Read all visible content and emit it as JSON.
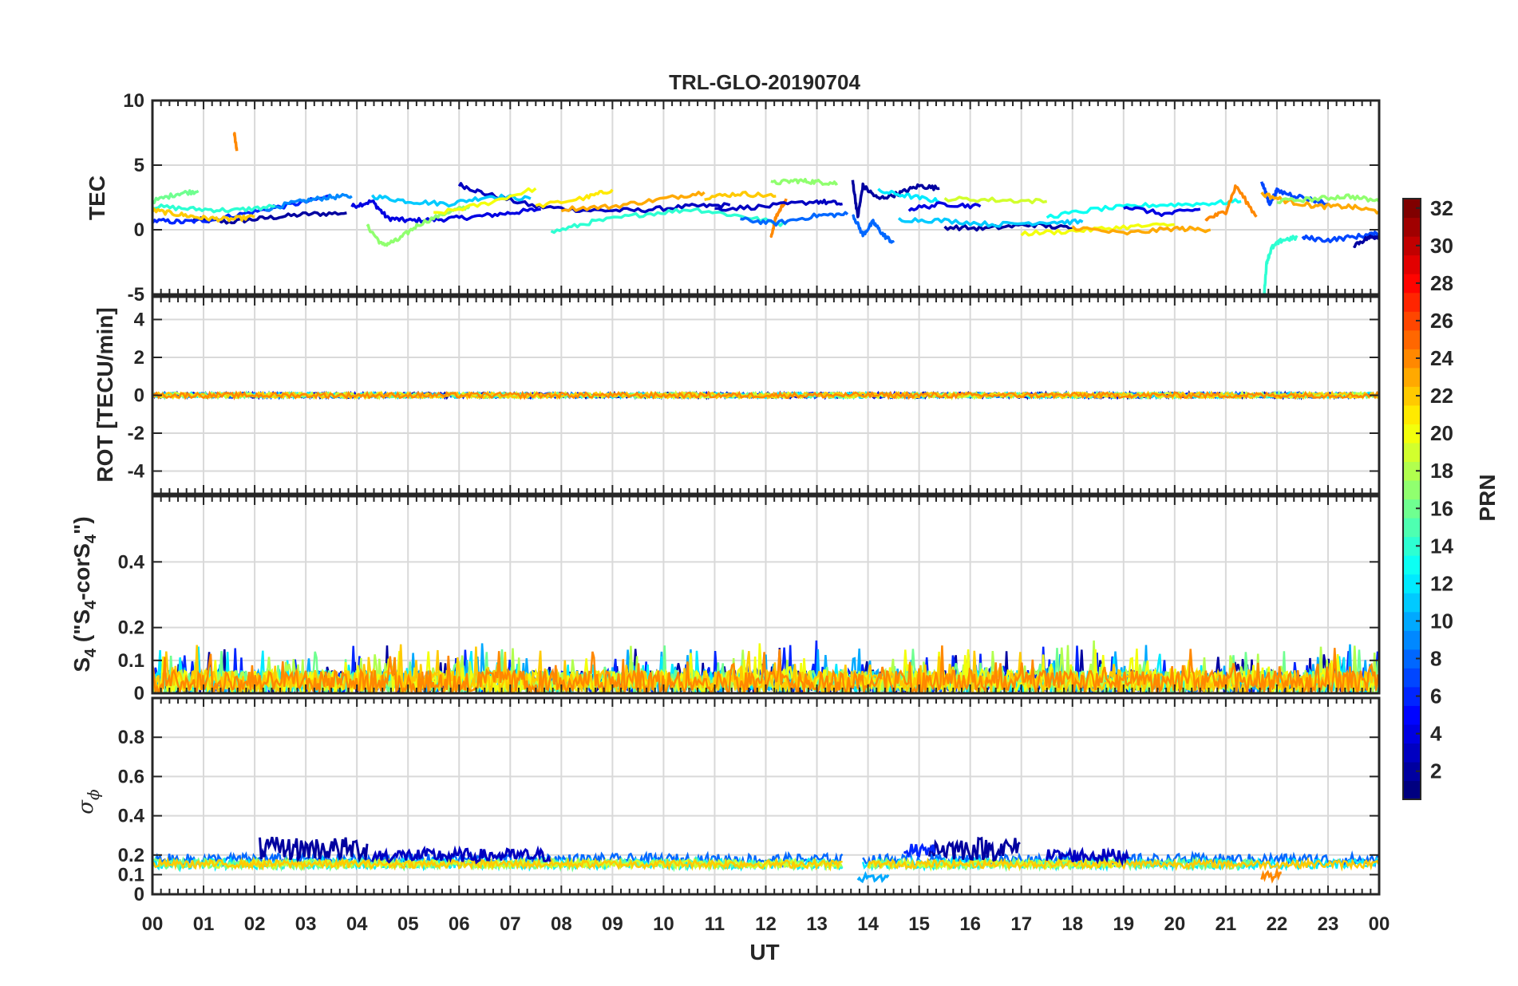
{
  "chart_data": {
    "type": "line",
    "title": "TRL-GLO-20190704",
    "xlabel": "UT",
    "x_ticks": [
      "00",
      "01",
      "02",
      "03",
      "04",
      "05",
      "06",
      "07",
      "08",
      "09",
      "10",
      "11",
      "12",
      "13",
      "14",
      "15",
      "16",
      "17",
      "18",
      "19",
      "20",
      "21",
      "22",
      "23",
      "00"
    ],
    "x_range_hours": [
      0,
      24
    ],
    "grid": true,
    "panels": [
      {
        "id": "tec",
        "ylabel": "TEC",
        "ylim": [
          -5,
          10
        ],
        "yticks": [
          -5,
          0,
          5,
          10
        ],
        "ytick_labels": [
          "-5",
          "0",
          "5",
          "10"
        ],
        "gridlines": [
          -5,
          0,
          5,
          10
        ]
      },
      {
        "id": "rot",
        "ylabel": "ROT [TECU/min]",
        "ylim": [
          -5.2,
          5.2
        ],
        "yticks": [
          -4,
          -2,
          0,
          2,
          4
        ],
        "ytick_labels": [
          "-4",
          "-2",
          "0",
          "2",
          "4"
        ],
        "gridlines": [
          -4,
          -2,
          0,
          2,
          4
        ]
      },
      {
        "id": "s4",
        "ylabel_main": "S",
        "ylabel_sub1": "4",
        "ylabel_mid": " (\"S",
        "ylabel_sub2": "4",
        "ylabel_mid2": "-corS",
        "ylabel_sub3": "4",
        "ylabel_end": "\")",
        "ylim": [
          0,
          0.6
        ],
        "yticks": [
          0,
          0.1,
          0.2,
          0.4
        ],
        "ytick_labels": [
          "0",
          "0.1",
          "0.2",
          "0.4"
        ],
        "gridlines": [
          0.1,
          0.2,
          0.4
        ]
      },
      {
        "id": "sigma",
        "ylabel_main": "σ",
        "ylabel_sub": "ϕ",
        "ylim": [
          0,
          1
        ],
        "yticks": [
          0,
          0.1,
          0.2,
          0.4,
          0.6,
          0.8
        ],
        "ytick_labels": [
          "0",
          "0.1",
          "0.2",
          "0.4",
          "0.6",
          "0.8"
        ],
        "gridlines": [
          0.1,
          0.2,
          0.4,
          0.6,
          0.8
        ]
      }
    ],
    "colorbar": {
      "label": "PRN",
      "range": [
        1,
        32
      ],
      "ticks": [
        2,
        4,
        6,
        8,
        10,
        12,
        14,
        16,
        18,
        20,
        22,
        24,
        26,
        28,
        30,
        32
      ],
      "tick_labels": [
        "2",
        "4",
        "6",
        "8",
        "10",
        "12",
        "14",
        "16",
        "18",
        "20",
        "22",
        "24",
        "26",
        "28",
        "30",
        "32"
      ],
      "colormap": "jet"
    },
    "series": [
      {
        "prn": 2,
        "panel": "tec",
        "x": [
          0.8,
          1.5,
          2.2,
          3.0,
          3.8
        ],
        "y": [
          0.8,
          0.6,
          0.9,
          1.2,
          1.3
        ]
      },
      {
        "prn": 4,
        "panel": "tec",
        "x": [
          3.9,
          4.3,
          4.6,
          5.0,
          5.6,
          6.3,
          7.0,
          7.6
        ],
        "y": [
          1.8,
          2.2,
          0.9,
          0.7,
          0.8,
          1.0,
          1.3,
          1.6
        ]
      },
      {
        "prn": 3,
        "panel": "tec",
        "x": [
          6.0,
          6.5,
          7.5,
          8.5,
          9.5,
          10.5,
          11.3
        ],
        "y": [
          3.5,
          2.8,
          1.8,
          1.5,
          1.5,
          1.8,
          1.9
        ]
      },
      {
        "prn": 6,
        "panel": "tec",
        "x": [
          0.0,
          0.6,
          1.2,
          2.0,
          2.8,
          3.5
        ],
        "y": [
          0.7,
          0.6,
          0.8,
          1.4,
          2.0,
          2.6
        ]
      },
      {
        "prn": 9,
        "panel": "tec",
        "x": [
          2.2,
          2.8,
          3.4,
          3.9
        ],
        "y": [
          1.6,
          2.1,
          2.5,
          2.6
        ]
      },
      {
        "prn": 11,
        "panel": "tec",
        "x": [
          4.3,
          5.0,
          5.8,
          6.6,
          7.4
        ],
        "y": [
          2.6,
          2.2,
          2.0,
          2.6,
          2.4
        ]
      },
      {
        "prn": 17,
        "panel": "tec",
        "x": [
          4.2,
          4.5,
          4.8,
          5.2,
          5.8,
          6.2
        ],
        "y": [
          0.3,
          -1.2,
          -0.8,
          0.4,
          1.4,
          1.8
        ]
      },
      {
        "prn": 16,
        "panel": "tec",
        "x": [
          0.0,
          0.5,
          0.9
        ],
        "y": [
          2.2,
          2.8,
          3.0
        ]
      },
      {
        "prn": 14,
        "panel": "tec",
        "x": [
          0.0,
          0.8,
          1.6,
          2.4
        ],
        "y": [
          1.8,
          1.6,
          1.5,
          1.8
        ]
      },
      {
        "prn": 22,
        "panel": "tec",
        "x": [
          0.0,
          0.5,
          1.0,
          1.5,
          2.0
        ],
        "y": [
          1.5,
          1.2,
          0.9,
          0.8,
          1.0
        ]
      },
      {
        "prn": 24,
        "panel": "tec",
        "x": [
          1.6,
          1.65
        ],
        "y": [
          7.5,
          6.1
        ]
      },
      {
        "prn": 20,
        "panel": "tec",
        "x": [
          5.5,
          6.5,
          7.5
        ],
        "y": [
          1.2,
          2.0,
          3.2
        ]
      },
      {
        "prn": 21,
        "panel": "tec",
        "x": [
          7.5,
          8.5,
          9.0
        ],
        "y": [
          1.8,
          2.5,
          3.1
        ]
      },
      {
        "prn": 14,
        "panel": "tec",
        "x": [
          7.8,
          8.6,
          9.6,
          10.6,
          11.6,
          12.4
        ],
        "y": [
          -0.2,
          0.6,
          1.2,
          1.6,
          1.0,
          0.4
        ]
      },
      {
        "prn": 23,
        "panel": "tec",
        "x": [
          8.0,
          9.0,
          10.0,
          10.8
        ],
        "y": [
          1.6,
          1.8,
          2.4,
          2.9
        ]
      },
      {
        "prn": 22,
        "panel": "tec",
        "x": [
          10.8,
          11.5,
          12.2
        ],
        "y": [
          2.5,
          2.8,
          2.6
        ]
      },
      {
        "prn": 24,
        "panel": "tec",
        "x": [
          12.1,
          12.2,
          12.4
        ],
        "y": [
          -0.6,
          1.0,
          2.4
        ]
      },
      {
        "prn": 17,
        "panel": "tec",
        "x": [
          12.1,
          12.6,
          13.0,
          13.4
        ],
        "y": [
          3.6,
          3.8,
          3.7,
          3.6
        ]
      },
      {
        "prn": 3,
        "panel": "tec",
        "x": [
          11.0,
          12.0,
          13.0,
          13.5
        ],
        "y": [
          1.6,
          1.8,
          2.2,
          2.0
        ]
      },
      {
        "prn": 8,
        "panel": "tec",
        "x": [
          11.5,
          12.2,
          13.0,
          13.6
        ],
        "y": [
          0.8,
          0.5,
          1.1,
          1.2
        ]
      },
      {
        "prn": 2,
        "panel": "tec",
        "x": [
          13.7,
          13.8,
          13.9,
          14.2,
          14.6,
          15.0,
          15.4
        ],
        "y": [
          3.8,
          1.0,
          3.4,
          2.4,
          2.8,
          3.4,
          3.2
        ]
      },
      {
        "prn": 8,
        "panel": "tec",
        "x": [
          13.7,
          13.9,
          14.1,
          14.3,
          14.5
        ],
        "y": [
          1.2,
          -0.4,
          0.6,
          -0.4,
          -1.0
        ]
      },
      {
        "prn": 12,
        "panel": "tec",
        "x": [
          14.2,
          14.8,
          15.4
        ],
        "y": [
          3.0,
          2.6,
          2.2
        ]
      },
      {
        "prn": 4,
        "panel": "tec",
        "x": [
          14.8,
          15.5,
          16.2
        ],
        "y": [
          1.6,
          2.0,
          1.8
        ]
      },
      {
        "prn": 19,
        "panel": "tec",
        "x": [
          15.5,
          16.5,
          17.5
        ],
        "y": [
          2.4,
          2.3,
          2.2
        ]
      },
      {
        "prn": 2,
        "panel": "tec",
        "x": [
          15.5,
          16.3,
          17.2,
          18.0
        ],
        "y": [
          0.2,
          0.1,
          0.4,
          0.1
        ]
      },
      {
        "prn": 11,
        "panel": "tec",
        "x": [
          14.6,
          15.5,
          16.5,
          17.5,
          18.2
        ],
        "y": [
          0.8,
          0.7,
          0.4,
          0.6,
          0.6
        ]
      },
      {
        "prn": 13,
        "panel": "tec",
        "x": [
          17.5,
          18.5,
          19.5,
          20.5,
          21.3
        ],
        "y": [
          1.0,
          1.6,
          1.9,
          2.0,
          2.2
        ]
      },
      {
        "prn": 20,
        "panel": "tec",
        "x": [
          17.0,
          18.0,
          19.0,
          20.0
        ],
        "y": [
          -0.3,
          -0.1,
          0.2,
          0.4
        ]
      },
      {
        "prn": 23,
        "panel": "tec",
        "x": [
          18.0,
          19.0,
          20.0,
          20.7
        ],
        "y": [
          0.2,
          -0.3,
          0.1,
          0.0
        ]
      },
      {
        "prn": 4,
        "panel": "tec",
        "x": [
          19.0,
          19.8,
          20.5
        ],
        "y": [
          1.8,
          1.2,
          1.6
        ]
      },
      {
        "prn": 24,
        "panel": "tec",
        "x": [
          20.6,
          21.0,
          21.2,
          21.6
        ],
        "y": [
          0.8,
          1.4,
          3.4,
          1.0
        ]
      },
      {
        "prn": 7,
        "panel": "tec",
        "x": [
          21.7,
          21.85,
          22.0,
          22.4,
          23.0
        ],
        "y": [
          3.8,
          2.0,
          3.0,
          2.6,
          2.0
        ]
      },
      {
        "prn": 23,
        "panel": "tec",
        "x": [
          21.7,
          22.2,
          22.8,
          23.4,
          24.0
        ],
        "y": [
          2.8,
          2.2,
          1.8,
          1.8,
          1.4
        ]
      },
      {
        "prn": 17,
        "panel": "tec",
        "x": [
          22.0,
          22.8,
          23.4,
          24.0
        ],
        "y": [
          2.2,
          2.4,
          2.6,
          2.2
        ]
      },
      {
        "prn": 14,
        "panel": "tec",
        "x": [
          21.75,
          21.8,
          21.9,
          22.1,
          22.4
        ],
        "y": [
          -5.0,
          -2.5,
          -1.4,
          -0.8,
          -0.6
        ]
      },
      {
        "prn": 7,
        "panel": "tec",
        "x": [
          22.5,
          23.0,
          23.6,
          24.0
        ],
        "y": [
          -0.6,
          -0.8,
          -0.5,
          -0.3
        ]
      },
      {
        "prn": 2,
        "panel": "tec",
        "x": [
          23.5,
          23.8,
          24.0
        ],
        "y": [
          -1.2,
          -0.6,
          -0.5
        ]
      }
    ]
  }
}
